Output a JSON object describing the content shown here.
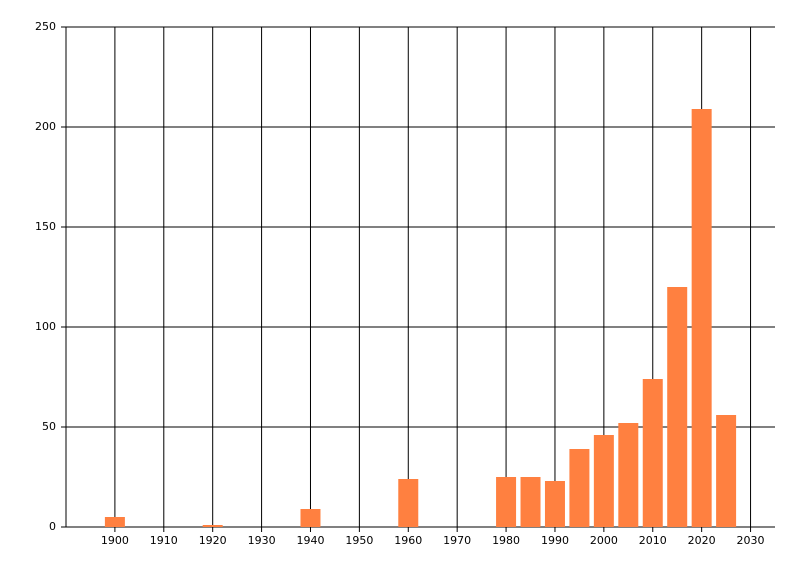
{
  "chart_data": {
    "type": "bar",
    "x": [
      1900,
      1920,
      1940,
      1960,
      1980,
      1985,
      1990,
      1995,
      2000,
      2005,
      2010,
      2015,
      2020,
      2025
    ],
    "values": [
      5,
      1,
      9,
      24,
      25,
      25,
      23,
      39,
      46,
      52,
      74,
      120,
      209,
      56
    ],
    "color": "#ff8040",
    "xlim": [
      1890,
      2035
    ],
    "xticks": [
      1900,
      1910,
      1920,
      1930,
      1940,
      1950,
      1960,
      1970,
      1980,
      1990,
      2000,
      2010,
      2020,
      2030
    ],
    "ylim": [
      0,
      250
    ],
    "yticks": [
      0,
      50,
      100,
      150,
      200,
      250
    ],
    "grid": true
  }
}
